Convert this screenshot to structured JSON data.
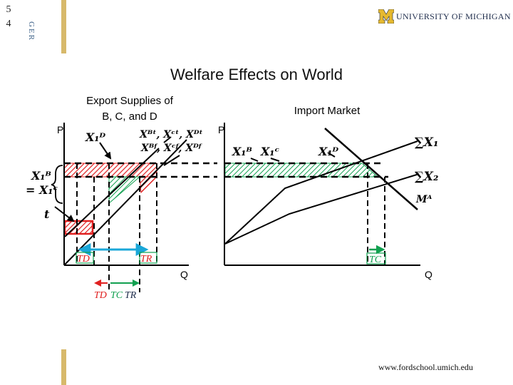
{
  "slide": {
    "number_lines": [
      "5",
      "4"
    ],
    "side_tag": "GER"
  },
  "logo": {
    "text": "UNIVERSITY OF MICHIGAN"
  },
  "title": "Welfare Effects on World",
  "left_panel": {
    "heading_line1": "Export Supplies of",
    "heading_line2": "B, C, and D",
    "axis_p": "P",
    "axis_q": "Q",
    "curve_label_x1d": "X₁ᴰ",
    "curve_label_supply_top": "Xᴮᵗ, Xᶜᵗ, Xᴰᵗ",
    "curve_label_supply_bottom": "Xᴮᶠ, Xᶜᶠ, Xᴰᶠ",
    "price_label_top": "X₁ᴮ",
    "price_label_bottom": "= X₁ᶜ",
    "tariff_label": "t",
    "arrow_label_td": "TD",
    "arrow_label_tr": "TR",
    "bottom_label_td": "TD",
    "bottom_label_tc": "TC",
    "bottom_label_tr": "TR"
  },
  "right_panel": {
    "heading": "Import Market",
    "axis_p": "P",
    "axis_q": "Q",
    "label_x1b": "X₁ᴮ",
    "label_x1c": "X₁ᶜ",
    "label_x1d": "X₁ᴰ",
    "label_sum_x1": "∑X₁",
    "label_sum_x2": "∑X₂",
    "label_ma": "Mᴬ",
    "label_tc": "TC"
  },
  "footer": {
    "url": "www.fordschool.umich.edu"
  },
  "colors": {
    "red": "#e02020",
    "green": "#12a050",
    "blue": "#1aa7d8",
    "gold": "#d7b96b",
    "navy": "#1d2b4a",
    "line": "#000000"
  }
}
